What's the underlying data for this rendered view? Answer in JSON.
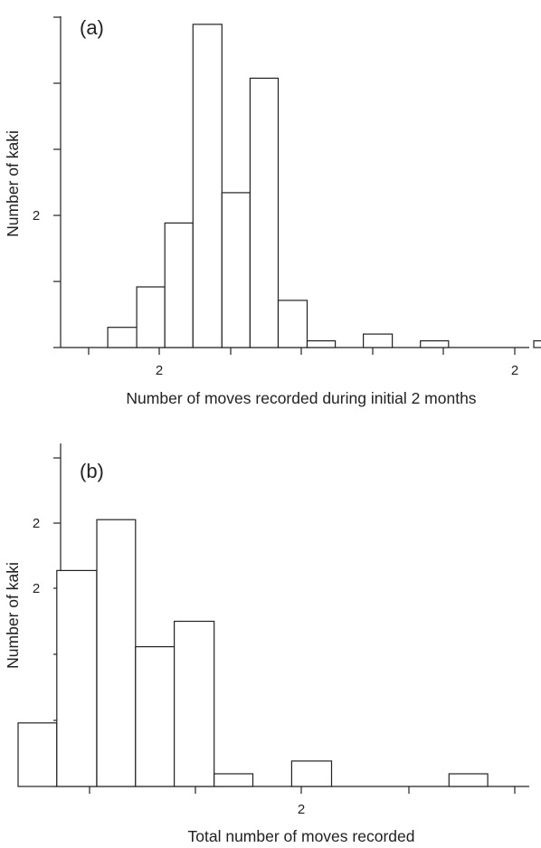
{
  "chart_data": [
    {
      "type": "bar",
      "panel_label": "(a)",
      "xlabel": "Number of moves recorded during initial 2 months",
      "ylabel": "Number of kaki",
      "x_tick_labels": [
        "",
        "2",
        "",
        "",
        "",
        "",
        "2"
      ],
      "y_tick_labels": [
        "",
        "",
        "2",
        "",
        "",
        ""
      ],
      "xlim": [
        0,
        5.5
      ],
      "ylim": [
        0,
        10
      ],
      "bins": [
        [
          0.5,
          0.84,
          0.6
        ],
        [
          0.84,
          1.17,
          1.8
        ],
        [
          1.17,
          1.5,
          3.7
        ],
        [
          1.5,
          1.84,
          9.6
        ],
        [
          1.84,
          2.17,
          4.6
        ],
        [
          2.17,
          2.5,
          8.0
        ],
        [
          2.5,
          2.84,
          1.4
        ],
        [
          2.84,
          3.17,
          0.2
        ],
        [
          3.5,
          3.84,
          0.4
        ],
        [
          4.17,
          4.5,
          0.2
        ],
        [
          5.5,
          5.84,
          0.2
        ]
      ]
    },
    {
      "type": "bar",
      "panel_label": "(b)",
      "xlabel": "Total number of moves recorded",
      "ylabel": "Number of kaki",
      "x_tick_labels": [
        "",
        "",
        "2",
        "",
        ""
      ],
      "y_tick_labels": [
        "",
        "",
        "",
        "2",
        "2"
      ],
      "xlim": [
        0,
        4.5
      ],
      "ylim": [
        0,
        5.4
      ],
      "bins": [
        [
          0.0,
          0.33,
          1.0
        ],
        [
          0.33,
          0.67,
          3.4
        ],
        [
          0.67,
          1.0,
          4.2
        ],
        [
          1.0,
          1.33,
          2.2
        ],
        [
          1.33,
          1.67,
          2.6
        ],
        [
          1.67,
          2.0,
          0.2
        ],
        [
          2.33,
          2.67,
          0.4
        ],
        [
          3.67,
          4.0,
          0.2
        ]
      ]
    }
  ]
}
